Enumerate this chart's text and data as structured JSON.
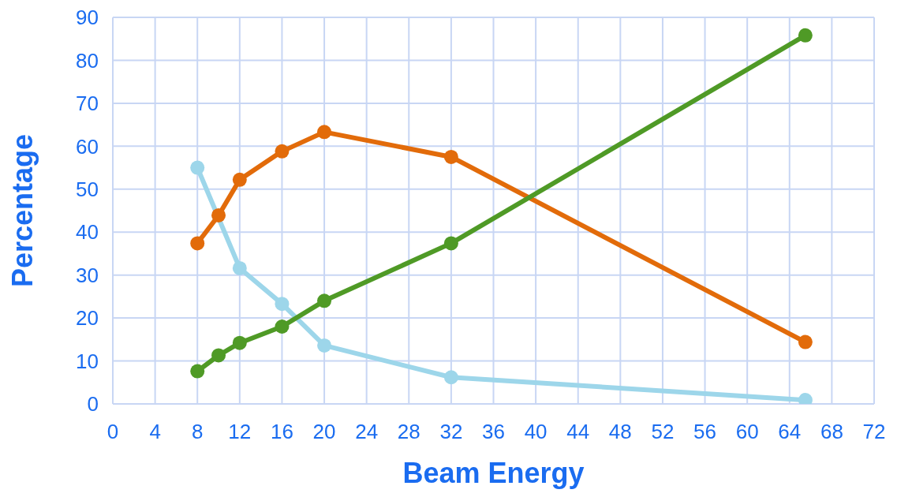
{
  "chart_data": {
    "type": "line",
    "xlabel": "Beam Energy",
    "ylabel": "Percentage",
    "x": [
      8,
      10,
      12,
      16,
      20,
      32,
      65.5
    ],
    "series": [
      {
        "color": "#9dd6ea",
        "values": [
          55,
          null,
          31.6,
          23.3,
          13.6,
          6.2,
          0.9
        ]
      },
      {
        "color": "#e26b0a",
        "values": [
          37.4,
          43.9,
          52.2,
          58.8,
          63.3,
          57.5,
          14.4
        ]
      },
      {
        "color": "#4f9a26",
        "values": [
          7.6,
          11.3,
          14.2,
          18,
          24,
          37.4,
          85.8
        ]
      }
    ],
    "xlim": [
      0,
      72
    ],
    "xticks": [
      0,
      4,
      8,
      12,
      16,
      20,
      24,
      28,
      32,
      36,
      40,
      44,
      48,
      52,
      56,
      60,
      64,
      68,
      72
    ],
    "ylim": [
      0,
      90
    ],
    "yticks": [
      0,
      10,
      20,
      30,
      40,
      50,
      60,
      70,
      80,
      90
    ],
    "grid": true,
    "legend": false,
    "marker": "circle",
    "line_style": "solid"
  }
}
